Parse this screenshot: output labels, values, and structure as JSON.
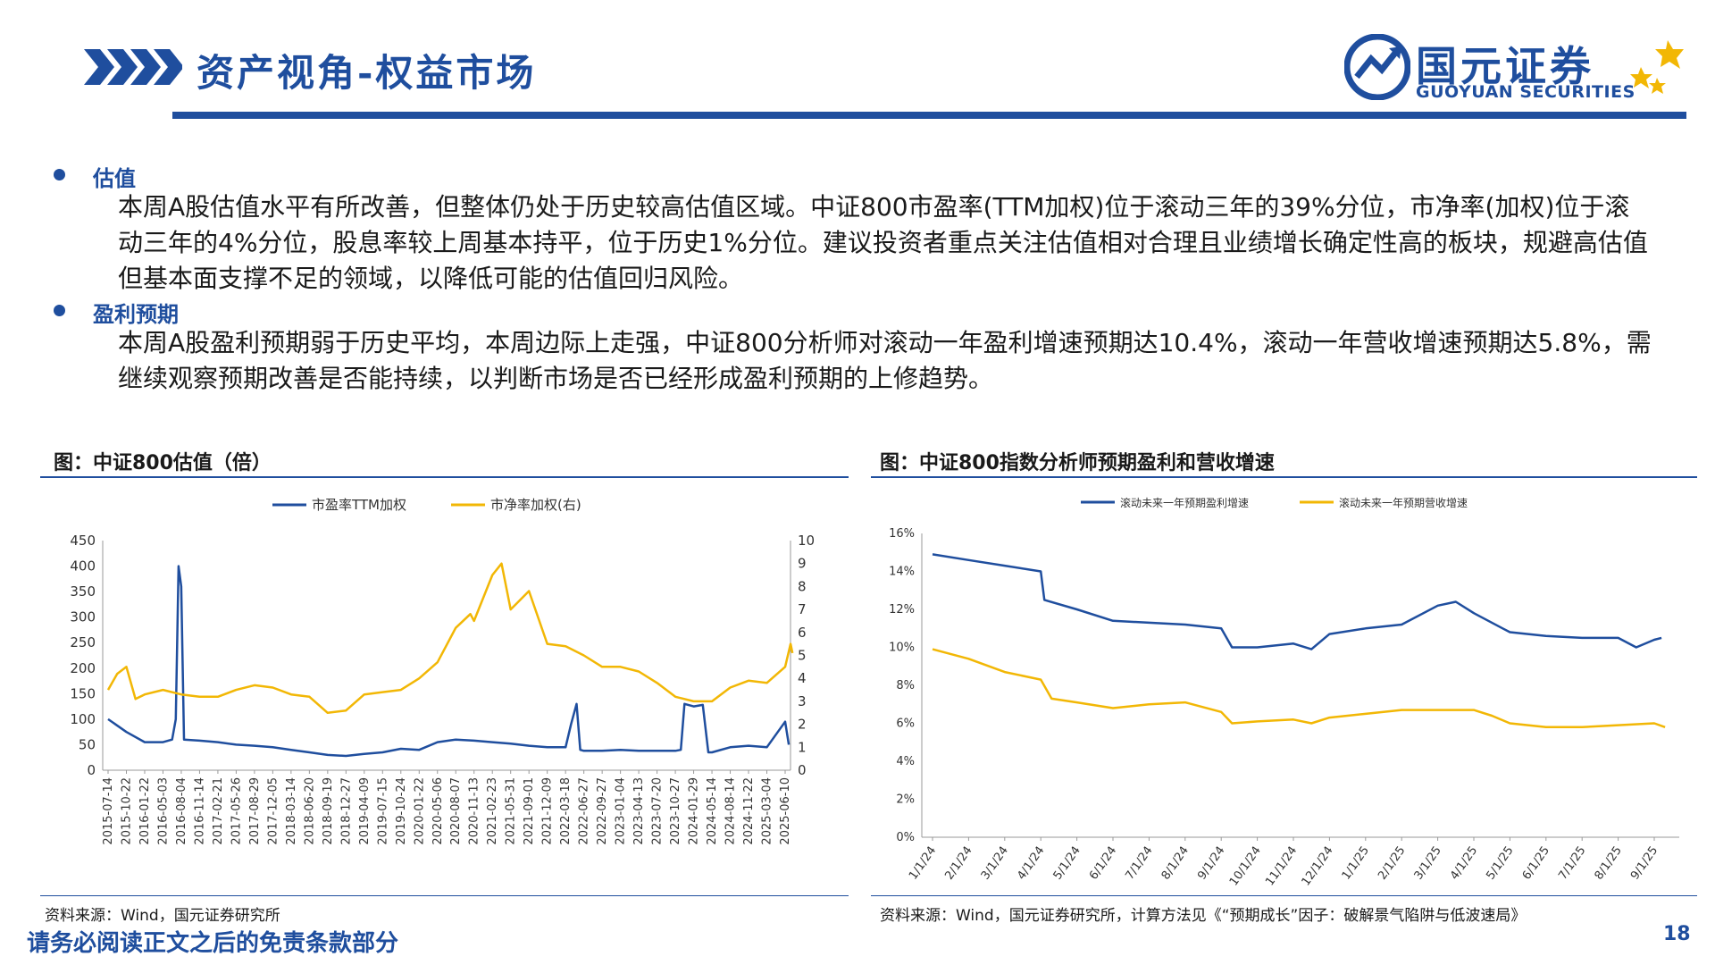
{
  "header": {
    "title": "资产视角-权益市场",
    "logo_cn": "国元证券",
    "logo_en": "GUOYUAN SECURITIES",
    "brand_color": "#1f4e9e",
    "accent_color": "#f2b705"
  },
  "sections": [
    {
      "title": "估值",
      "text": "本周A股估值水平有所改善，但整体仍处于历史较高估值区域。中证800市盈率(TTM加权)位于滚动三年的39%分位，市净率(加权)位于滚动三年的4%分位，股息率较上周基本持平，位于历史1%分位。建议投资者重点关注估值相对合理且业绩增长确定性高的板块，规避高估值但基本面支撑不足的领域，以降低可能的估值回归风险。"
    },
    {
      "title": "盈利预期",
      "text": "本周A股盈利预期弱于历史平均，本周边际上走强，中证800分析师对滚动一年盈利增速预期达10.4%，滚动一年营收增速预期达5.8%，需继续观察预期改善是否能持续，以判断市场是否已经形成盈利预期的上修趋势。"
    }
  ],
  "charts": {
    "left_title": "图：中证800估值（倍）",
    "left_source": "资料来源：Wind，国元证券研究所",
    "right_title": "图：中证800指数分析师预期盈利和营收增速",
    "right_source": "资料来源：Wind，国元证券研究所，计算方法见《“预期成长”因子：破解景气陷阱与低波速局》"
  },
  "footer": {
    "disclaimer": "请务必阅读正文之后的免责条款部分",
    "page_number": "18"
  },
  "chart_data": [
    {
      "type": "line",
      "title": "",
      "legend_placement": "top",
      "x_ticks": [
        "2015-07-14",
        "2015-10-22",
        "2016-01-22",
        "2016-05-03",
        "2016-08-04",
        "2016-11-14",
        "2017-02-21",
        "2017-05-26",
        "2017-08-29",
        "2017-12-05",
        "2018-03-14",
        "2018-06-20",
        "2018-09-19",
        "2018-12-27",
        "2019-04-09",
        "2019-07-15",
        "2019-10-24",
        "2020-01-22",
        "2020-05-06",
        "2020-08-07",
        "2020-11-13",
        "2021-02-23",
        "2021-05-31",
        "2021-09-01",
        "2021-12-09",
        "2022-03-18",
        "2022-06-27",
        "2022-09-27",
        "2023-01-04",
        "2023-04-13",
        "2023-07-20",
        "2023-10-27",
        "2024-01-29",
        "2024-05-14",
        "2024-08-14",
        "2024-11-22",
        "2025-03-04",
        "2025-06-10"
      ],
      "y_left": {
        "min": 0,
        "max": 450,
        "ticks": [
          0,
          50,
          100,
          150,
          200,
          250,
          300,
          350,
          400,
          450
        ]
      },
      "y_right": {
        "min": 0,
        "max": 10,
        "ticks": [
          0,
          1,
          2,
          3,
          4,
          5,
          6,
          7,
          8,
          9,
          10
        ]
      },
      "series": [
        {
          "name": "市盈率TTM加权",
          "axis": "left",
          "color": "#1f4e9e",
          "points": [
            [
              0,
              100
            ],
            [
              1,
              75
            ],
            [
              2,
              55
            ],
            [
              3,
              55
            ],
            [
              3.5,
              60
            ],
            [
              3.7,
              100
            ],
            [
              3.85,
              400
            ],
            [
              4,
              360
            ],
            [
              4.15,
              60
            ],
            [
              5,
              58
            ],
            [
              6,
              55
            ],
            [
              7,
              50
            ],
            [
              8,
              48
            ],
            [
              9,
              45
            ],
            [
              10,
              40
            ],
            [
              11,
              35
            ],
            [
              12,
              30
            ],
            [
              13,
              28
            ],
            [
              14,
              32
            ],
            [
              15,
              35
            ],
            [
              16,
              42
            ],
            [
              17,
              40
            ],
            [
              18,
              55
            ],
            [
              19,
              60
            ],
            [
              20,
              58
            ],
            [
              21,
              55
            ],
            [
              22,
              52
            ],
            [
              23,
              48
            ],
            [
              24,
              45
            ],
            [
              25,
              45
            ],
            [
              25.3,
              90
            ],
            [
              25.6,
              130
            ],
            [
              25.8,
              40
            ],
            [
              26,
              38
            ],
            [
              27,
              38
            ],
            [
              28,
              40
            ],
            [
              29,
              38
            ],
            [
              30,
              38
            ],
            [
              31,
              38
            ],
            [
              31.3,
              40
            ],
            [
              31.5,
              130
            ],
            [
              32,
              125
            ],
            [
              32.5,
              128
            ],
            [
              32.8,
              35
            ],
            [
              33,
              35
            ],
            [
              34,
              45
            ],
            [
              35,
              48
            ],
            [
              36,
              45
            ],
            [
              37,
              95
            ],
            [
              37.2,
              50
            ]
          ]
        },
        {
          "name": "市净率加权(右)",
          "axis": "right",
          "color": "#f2b705",
          "points": [
            [
              0,
              3.5
            ],
            [
              0.5,
              4.2
            ],
            [
              1,
              4.5
            ],
            [
              1.5,
              3.1
            ],
            [
              2,
              3.3
            ],
            [
              3,
              3.5
            ],
            [
              4,
              3.3
            ],
            [
              5,
              3.2
            ],
            [
              6,
              3.2
            ],
            [
              7,
              3.5
            ],
            [
              8,
              3.7
            ],
            [
              9,
              3.6
            ],
            [
              10,
              3.3
            ],
            [
              11,
              3.2
            ],
            [
              12,
              2.5
            ],
            [
              13,
              2.6
            ],
            [
              14,
              3.3
            ],
            [
              15,
              3.4
            ],
            [
              16,
              3.5
            ],
            [
              17,
              4.0
            ],
            [
              18,
              4.7
            ],
            [
              19,
              6.2
            ],
            [
              19.8,
              6.8
            ],
            [
              20,
              6.5
            ],
            [
              21,
              8.5
            ],
            [
              21.5,
              9.0
            ],
            [
              22,
              7.0
            ],
            [
              23,
              7.8
            ],
            [
              24,
              5.5
            ],
            [
              25,
              5.4
            ],
            [
              26,
              5.0
            ],
            [
              27,
              4.5
            ],
            [
              28,
              4.5
            ],
            [
              29,
              4.3
            ],
            [
              30,
              3.8
            ],
            [
              31,
              3.2
            ],
            [
              32,
              3.0
            ],
            [
              33,
              3.0
            ],
            [
              34,
              3.6
            ],
            [
              35,
              3.9
            ],
            [
              36,
              3.8
            ],
            [
              37,
              4.5
            ],
            [
              37.3,
              5.5
            ],
            [
              37.4,
              5.1
            ]
          ]
        }
      ]
    },
    {
      "type": "line",
      "title": "",
      "legend_placement": "top",
      "x_ticks": [
        "1/1/24",
        "2/1/24",
        "3/1/24",
        "4/1/24",
        "5/1/24",
        "6/1/24",
        "7/1/24",
        "8/1/24",
        "9/1/24",
        "10/1/24",
        "11/1/24",
        "12/1/24",
        "1/1/25",
        "2/1/25",
        "3/1/25",
        "4/1/25",
        "5/1/25",
        "6/1/25",
        "7/1/25",
        "8/1/25",
        "9/1/25"
      ],
      "y": {
        "min": 0,
        "max": 16,
        "ticks": [
          "0%",
          "2%",
          "4%",
          "6%",
          "8%",
          "10%",
          "12%",
          "14%",
          "16%"
        ]
      },
      "series": [
        {
          "name": "滚动未来一年预期盈利增速",
          "color": "#1f4e9e",
          "points": [
            [
              0,
              14.9
            ],
            [
              1,
              14.6
            ],
            [
              2,
              14.3
            ],
            [
              3,
              14.0
            ],
            [
              3.1,
              12.5
            ],
            [
              4,
              12.0
            ],
            [
              5,
              11.4
            ],
            [
              6,
              11.3
            ],
            [
              7,
              11.2
            ],
            [
              8,
              11.0
            ],
            [
              8.3,
              10.0
            ],
            [
              9,
              10.0
            ],
            [
              10,
              10.2
            ],
            [
              10.5,
              9.9
            ],
            [
              11,
              10.7
            ],
            [
              12,
              11.0
            ],
            [
              13,
              11.2
            ],
            [
              14,
              12.2
            ],
            [
              14.5,
              12.4
            ],
            [
              15,
              11.8
            ],
            [
              15.8,
              11.0
            ],
            [
              16,
              10.8
            ],
            [
              17,
              10.6
            ],
            [
              18,
              10.5
            ],
            [
              19,
              10.5
            ],
            [
              19.5,
              10.0
            ],
            [
              20,
              10.4
            ],
            [
              20.2,
              10.5
            ]
          ]
        },
        {
          "name": "滚动未来一年预期营收增速",
          "color": "#f2b705",
          "points": [
            [
              0,
              9.9
            ],
            [
              1,
              9.4
            ],
            [
              2,
              8.7
            ],
            [
              3,
              8.3
            ],
            [
              3.3,
              7.3
            ],
            [
              4,
              7.1
            ],
            [
              5,
              6.8
            ],
            [
              6,
              7.0
            ],
            [
              7,
              7.1
            ],
            [
              8,
              6.6
            ],
            [
              8.3,
              6.0
            ],
            [
              9,
              6.1
            ],
            [
              10,
              6.2
            ],
            [
              10.5,
              6.0
            ],
            [
              11,
              6.3
            ],
            [
              12,
              6.5
            ],
            [
              13,
              6.7
            ],
            [
              14,
              6.7
            ],
            [
              15,
              6.7
            ],
            [
              15.5,
              6.4
            ],
            [
              16,
              6.0
            ],
            [
              17,
              5.8
            ],
            [
              18,
              5.8
            ],
            [
              19,
              5.9
            ],
            [
              20,
              6.0
            ],
            [
              20.3,
              5.8
            ]
          ]
        }
      ]
    }
  ]
}
